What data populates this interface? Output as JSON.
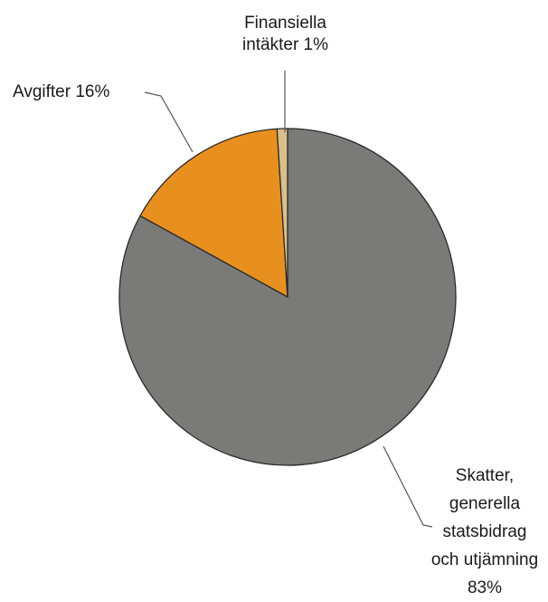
{
  "chart_data": {
    "type": "pie",
    "start_angle_deg": 0,
    "direction": "clockwise",
    "slices": [
      {
        "label": "Skatter, generella statsbidrag och utjämning",
        "value": 83,
        "color": "#7a7b78"
      },
      {
        "label": "Avgifter",
        "value": 16,
        "color": "#e8901f"
      },
      {
        "label": "Finansiella intäkter",
        "value": 1,
        "color": "#d9c08a"
      }
    ],
    "data_labels": {
      "skatter": [
        "Skatter,",
        "generella",
        "statsbidrag",
        "och utjämning",
        "83%"
      ],
      "avgifter": [
        "Avgifter 16%"
      ],
      "finansiella": [
        "Finansiella",
        "intäkter 1%"
      ]
    }
  }
}
